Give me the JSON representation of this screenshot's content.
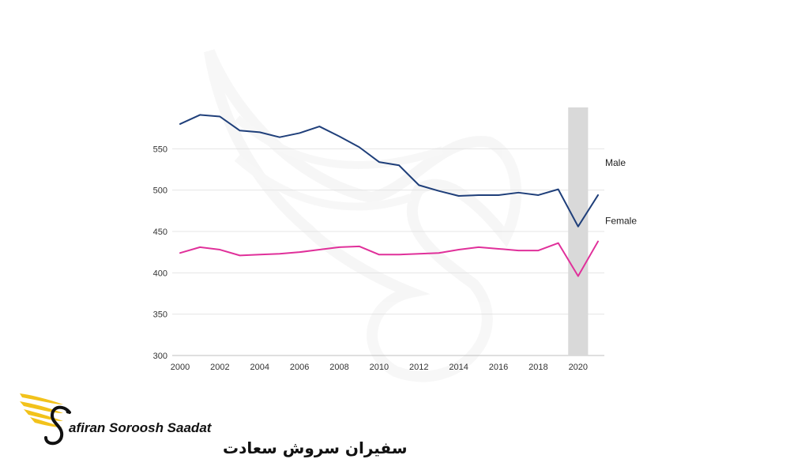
{
  "chart_data": {
    "type": "line",
    "x": [
      2000,
      2001,
      2002,
      2003,
      2004,
      2005,
      2006,
      2007,
      2008,
      2009,
      2010,
      2011,
      2012,
      2013,
      2014,
      2015,
      2016,
      2017,
      2018,
      2019,
      2020,
      2021
    ],
    "series": [
      {
        "name": "Male",
        "color": "#1f3f7a",
        "values": [
          580,
          591,
          589,
          572,
          570,
          564,
          569,
          577,
          565,
          552,
          534,
          530,
          506,
          499,
          493,
          494,
          494,
          497,
          494,
          501,
          456,
          494
        ]
      },
      {
        "name": "Female",
        "color": "#e0309a",
        "values": [
          424,
          431,
          428,
          421,
          422,
          423,
          425,
          428,
          431,
          432,
          422,
          422,
          423,
          424,
          428,
          431,
          429,
          427,
          427,
          436,
          396,
          438
        ]
      }
    ],
    "xticks": [
      "2000",
      "2002",
      "2004",
      "2006",
      "2008",
      "2010",
      "2012",
      "2014",
      "2016",
      "2018",
      "2020"
    ],
    "yticks": [
      "300",
      "350",
      "400",
      "450",
      "500",
      "550"
    ],
    "xlim": [
      2000,
      2021
    ],
    "ylim": [
      300,
      600
    ],
    "highlight_band": {
      "from": 2019.5,
      "to": 2020.5,
      "color": "#d9d9d9"
    },
    "grid": true,
    "legend": "inline-right",
    "title": "",
    "xlabel": "",
    "ylabel": ""
  },
  "branding": {
    "name_en": "afiran Soroosh Saadat",
    "name_fa": "سفیران سروش سعادت",
    "logo_colors": {
      "wing": "#f2c21b",
      "ink": "#111111"
    }
  }
}
